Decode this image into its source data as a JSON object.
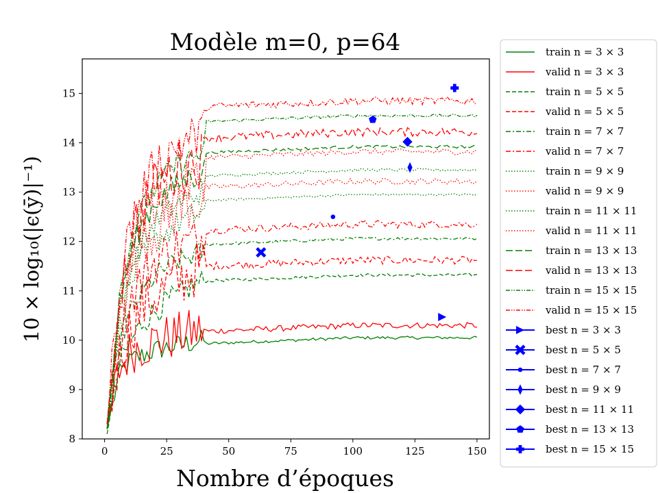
{
  "chart_data": {
    "type": "line",
    "title": "Modèle m=0, p=64",
    "xlabel": "Nombre d’époques",
    "ylabel": "10 × log₁₀(|ϵ(ȳ)|⁻¹)",
    "xlim": [
      -9,
      155
    ],
    "ylim": [
      8,
      15.7
    ],
    "xticks": [
      0,
      25,
      50,
      75,
      100,
      125,
      150
    ],
    "yticks": [
      8,
      9,
      10,
      11,
      12,
      13,
      14,
      15
    ],
    "legend_position": "outside-right",
    "series": [
      {
        "name": "train n = 3 × 3",
        "color": "#008000",
        "dash": "solid",
        "warmup": [
          8.2,
          9.3,
          9.6,
          9.7,
          9.8,
          9.85,
          9.9,
          9.95,
          10.0
        ],
        "plateau": 10.05,
        "noise": 0.03
      },
      {
        "name": "valid n = 3 × 3",
        "color": "#ff0000",
        "dash": "solid",
        "warmup": [
          8.3,
          9.4,
          9.8,
          9.9,
          10.0,
          10.05,
          10.1,
          10.15,
          10.2
        ],
        "plateau": 10.3,
        "noise": 0.06
      },
      {
        "name": "train n = 5 × 5",
        "color": "#008000",
        "dash": "dashed",
        "warmup": [
          8.1,
          9.5,
          10.0,
          10.4,
          10.6,
          10.8,
          10.9,
          11.1,
          11.2
        ],
        "plateau": 11.32,
        "noise": 0.03
      },
      {
        "name": "valid n = 5 × 5",
        "color": "#ff0000",
        "dash": "dashed",
        "warmup": [
          8.2,
          9.7,
          10.3,
          10.7,
          10.9,
          11.1,
          11.2,
          11.4,
          11.5
        ],
        "plateau": 11.62,
        "noise": 0.08
      },
      {
        "name": "train n = 7 × 7",
        "color": "#008000",
        "dash": "dashdot",
        "warmup": [
          8.2,
          9.9,
          10.6,
          11.0,
          11.3,
          11.5,
          11.6,
          11.7,
          11.8
        ],
        "plateau": 12.06,
        "noise": 0.03
      },
      {
        "name": "valid n = 7 × 7",
        "color": "#ff0000",
        "dash": "dashdot",
        "warmup": [
          8.3,
          10.1,
          10.9,
          11.3,
          11.6,
          11.8,
          11.9,
          12.0,
          12.1
        ],
        "plateau": 12.35,
        "noise": 0.08
      },
      {
        "name": "train n = 9 × 9",
        "color": "#008000",
        "dash": "dotted",
        "warmup": [
          8.2,
          10.3,
          11.2,
          11.7,
          12.0,
          12.2,
          12.4,
          12.5,
          12.6
        ],
        "plateau": 12.95,
        "noise": 0.02
      },
      {
        "name": "valid n = 9 × 9",
        "color": "#ff0000",
        "dash": "dotted",
        "warmup": [
          8.3,
          10.5,
          11.5,
          12.0,
          12.3,
          12.5,
          12.7,
          12.8,
          12.9
        ],
        "plateau": 13.22,
        "noise": 0.06
      },
      {
        "name": "train n = 11 × 11",
        "color": "#008000",
        "dash": "dotted",
        "warmup": [
          8.2,
          10.5,
          11.5,
          12.0,
          12.4,
          12.6,
          12.8,
          12.9,
          13.0
        ],
        "plateau": 13.45,
        "noise": 0.03
      },
      {
        "name": "valid n = 11 × 11",
        "color": "#ff0000",
        "dash": "dotted",
        "warmup": [
          8.3,
          10.7,
          11.8,
          12.3,
          12.7,
          12.9,
          13.1,
          13.2,
          13.3
        ],
        "plateau": 13.82,
        "noise": 0.06
      },
      {
        "name": "train n = 13 × 13",
        "color": "#008000",
        "dash": "longdash",
        "warmup": [
          8.2,
          10.7,
          11.8,
          12.4,
          12.8,
          13.0,
          13.2,
          13.3,
          13.4
        ],
        "plateau": 13.92,
        "noise": 0.03
      },
      {
        "name": "valid n = 13 × 13",
        "color": "#ff0000",
        "dash": "longdash",
        "warmup": [
          8.3,
          10.9,
          12.1,
          12.7,
          13.1,
          13.3,
          13.5,
          13.6,
          13.7
        ],
        "plateau": 14.22,
        "noise": 0.09
      },
      {
        "name": "train n = 15 × 15",
        "color": "#008000",
        "dash": "dashdotdot",
        "warmup": [
          8.2,
          10.9,
          12.1,
          12.7,
          13.1,
          13.4,
          13.6,
          13.7,
          13.8
        ],
        "plateau": 14.55,
        "noise": 0.03
      },
      {
        "name": "valid n = 15 × 15",
        "color": "#ff0000",
        "dash": "dashdotdot",
        "warmup": [
          8.3,
          11.1,
          12.4,
          13.0,
          13.5,
          13.8,
          14.0,
          14.1,
          14.2
        ],
        "plateau": 14.85,
        "noise": 0.08
      }
    ],
    "best_points": [
      {
        "name": "best n = 3 × 3",
        "marker": "triangle-right",
        "x": 136,
        "y": 10.47
      },
      {
        "name": "best n = 5 × 5",
        "marker": "x",
        "x": 63,
        "y": 11.78
      },
      {
        "name": "best n = 7 × 7",
        "marker": "dot",
        "x": 92,
        "y": 12.5
      },
      {
        "name": "best n = 9 × 9",
        "marker": "thin-diamond",
        "x": 123,
        "y": 13.5
      },
      {
        "name": "best n = 11 × 11",
        "marker": "diamond",
        "x": 122,
        "y": 14.02
      },
      {
        "name": "best n = 13 × 13",
        "marker": "pentagon",
        "x": 108,
        "y": 14.47
      },
      {
        "name": "best n = 15 × 15",
        "marker": "plus",
        "x": 141,
        "y": 15.11
      }
    ],
    "best_color": "#0000ff"
  }
}
